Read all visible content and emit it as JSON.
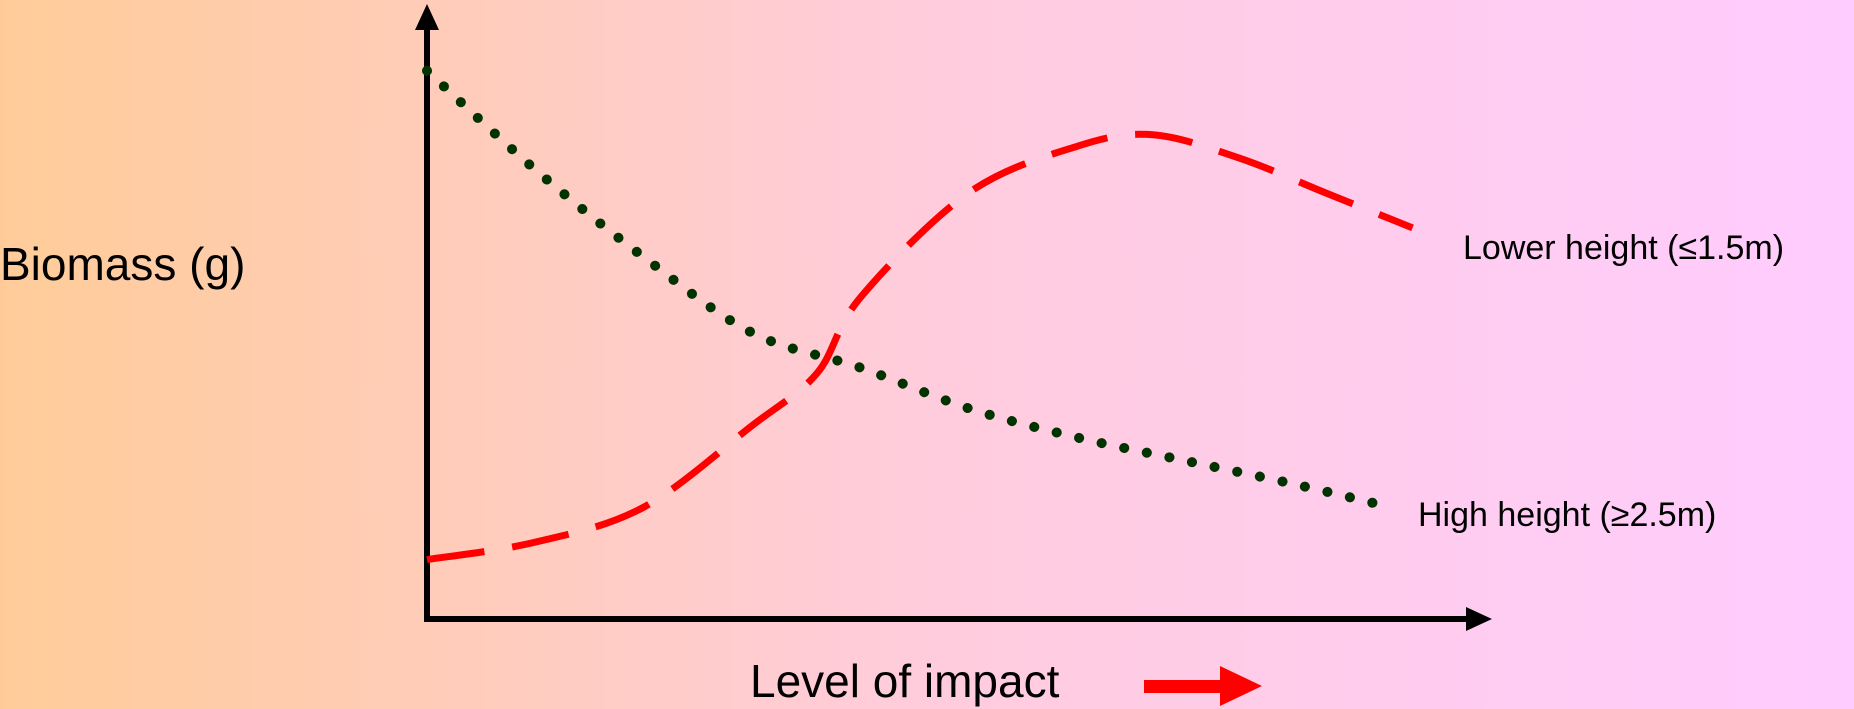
{
  "chart_data": {
    "type": "line",
    "title": "",
    "ylabel": "Biomass (g)",
    "xlabel": "Level of impact",
    "xlim": [
      0,
      100
    ],
    "ylim": [
      0,
      100
    ],
    "grid": false,
    "legend": "inline labels at line ends",
    "series": [
      {
        "name": "Lower height (≤1.5m)",
        "color": "#ff0000",
        "style": "dashed",
        "points": [
          [
            0,
            9
          ],
          [
            10,
            12
          ],
          [
            20,
            18
          ],
          [
            30,
            32
          ],
          [
            36,
            41
          ],
          [
            40,
            54
          ],
          [
            50,
            72
          ],
          [
            60,
            80
          ],
          [
            67,
            82
          ],
          [
            75,
            78
          ],
          [
            83,
            72
          ],
          [
            91,
            66
          ]
        ]
      },
      {
        "name": "High height (≥2.5m)",
        "color": "#003300",
        "style": "dotted",
        "points": [
          [
            0,
            93
          ],
          [
            10,
            76
          ],
          [
            20,
            61
          ],
          [
            30,
            48
          ],
          [
            40,
            42
          ],
          [
            50,
            35
          ],
          [
            60,
            30
          ],
          [
            70,
            26
          ],
          [
            80,
            22
          ],
          [
            89,
            18
          ]
        ]
      }
    ]
  },
  "colors": {
    "axis": "#000000",
    "arrow_icon": "#ff0000"
  },
  "icons": {
    "impact_arrow": "right-arrow-icon"
  }
}
